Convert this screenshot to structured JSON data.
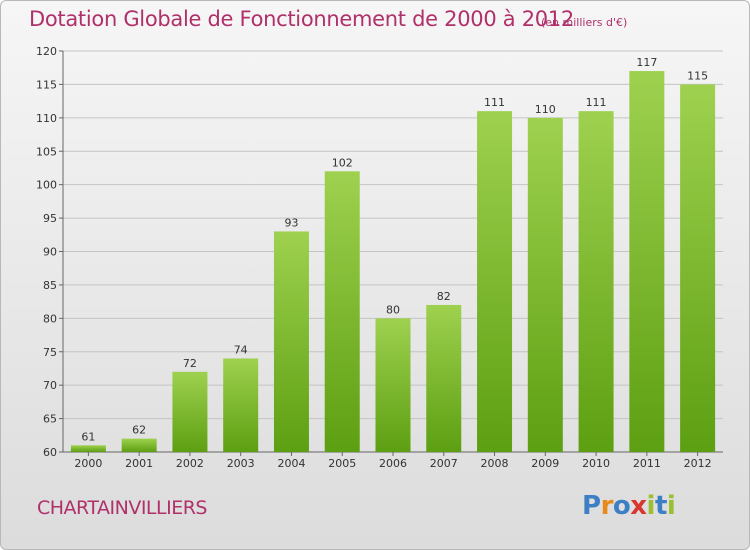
{
  "title": "Dotation Globale de Fonctionnement de 2000 à 2012",
  "subtitle": "(en milliers d'€)",
  "commune": "CHARTAINVILLIERS",
  "logo": {
    "letters": [
      "P",
      "r",
      "o",
      "x",
      "i",
      "t",
      "i"
    ],
    "colors": [
      "#3d7fc4",
      "#e8891c",
      "#3d7fc4",
      "#d8362f",
      "#9bbf2f",
      "#3d7fc4",
      "#9bbf2f"
    ]
  },
  "colors": {
    "bar_top": "#9ed14f",
    "bar_bottom": "#5d9f12",
    "title": "#b0306a"
  },
  "chart_data": {
    "type": "bar",
    "categories": [
      "2000",
      "2001",
      "2002",
      "2003",
      "2004",
      "2005",
      "2006",
      "2007",
      "2008",
      "2009",
      "2010",
      "2011",
      "2012"
    ],
    "values": [
      61,
      62,
      72,
      74,
      93,
      102,
      80,
      82,
      111,
      110,
      111,
      117,
      115
    ],
    "data_labels": [
      "61",
      "62",
      "72",
      "74",
      "93",
      "102",
      "80",
      "82",
      "111",
      "110",
      "111",
      "117",
      "115"
    ],
    "yticks": [
      60,
      65,
      70,
      75,
      80,
      85,
      90,
      95,
      100,
      105,
      110,
      115,
      120
    ],
    "ylim": [
      60,
      120
    ],
    "grid": true
  }
}
